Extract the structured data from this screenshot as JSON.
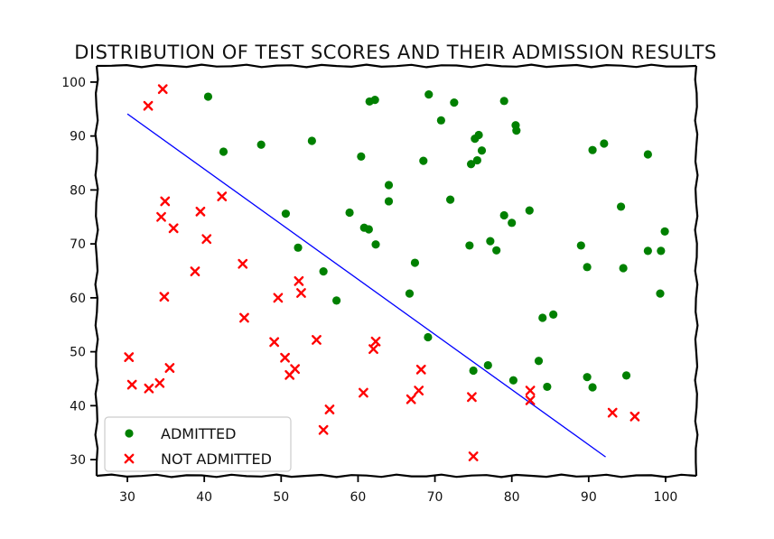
{
  "chart_data": {
    "type": "scatter",
    "title": "DISTRIBUTION OF TEST SCORES AND THEIR ADMISSION RESULTS",
    "xlabel": "",
    "ylabel": "",
    "xlim": [
      26,
      104
    ],
    "ylim": [
      27,
      103
    ],
    "xticks": [
      "30",
      "40",
      "50",
      "60",
      "70",
      "80",
      "90",
      "100"
    ],
    "yticks": [
      "30",
      "40",
      "50",
      "60",
      "70",
      "80",
      "90",
      "100"
    ],
    "grid": false,
    "legend_position": "lower-left",
    "series": [
      {
        "name": "ADMITTED",
        "marker": "circle",
        "color": "#008000",
        "points": [
          [
            40.5,
            97.3
          ],
          [
            61.5,
            96.4
          ],
          [
            62.2,
            96.7
          ],
          [
            69.2,
            97.7
          ],
          [
            72.5,
            96.2
          ],
          [
            79.0,
            96.5
          ],
          [
            70.8,
            92.9
          ],
          [
            80.5,
            92.0
          ],
          [
            80.6,
            91.0
          ],
          [
            75.2,
            89.5
          ],
          [
            75.7,
            90.2
          ],
          [
            54.0,
            89.1
          ],
          [
            47.4,
            88.4
          ],
          [
            42.5,
            87.1
          ],
          [
            76.1,
            87.3
          ],
          [
            92.0,
            88.6
          ],
          [
            90.5,
            87.4
          ],
          [
            97.7,
            86.6
          ],
          [
            60.4,
            86.2
          ],
          [
            68.5,
            85.4
          ],
          [
            75.5,
            85.5
          ],
          [
            74.7,
            84.8
          ],
          [
            64.0,
            80.9
          ],
          [
            64.0,
            77.9
          ],
          [
            72.0,
            78.2
          ],
          [
            94.2,
            76.9
          ],
          [
            82.3,
            76.2
          ],
          [
            79.0,
            75.3
          ],
          [
            58.9,
            75.8
          ],
          [
            50.6,
            75.6
          ],
          [
            60.8,
            73.0
          ],
          [
            61.4,
            72.7
          ],
          [
            80.0,
            73.9
          ],
          [
            99.9,
            72.3
          ],
          [
            62.3,
            69.9
          ],
          [
            52.2,
            69.3
          ],
          [
            74.5,
            69.7
          ],
          [
            77.2,
            70.5
          ],
          [
            78.0,
            68.8
          ],
          [
            89.0,
            69.7
          ],
          [
            97.7,
            68.7
          ],
          [
            99.4,
            68.7
          ],
          [
            67.4,
            66.5
          ],
          [
            89.8,
            65.7
          ],
          [
            94.5,
            65.5
          ],
          [
            55.5,
            64.9
          ],
          [
            66.7,
            60.8
          ],
          [
            57.2,
            59.5
          ],
          [
            99.3,
            60.8
          ],
          [
            85.4,
            56.9
          ],
          [
            84.0,
            56.3
          ],
          [
            69.1,
            52.7
          ],
          [
            76.9,
            47.5
          ],
          [
            75.0,
            46.5
          ],
          [
            83.5,
            48.3
          ],
          [
            80.2,
            44.7
          ],
          [
            84.6,
            43.5
          ],
          [
            89.8,
            45.3
          ],
          [
            90.5,
            43.4
          ],
          [
            94.9,
            45.6
          ]
        ]
      },
      {
        "name": "NOT ADMITTED",
        "marker": "x",
        "color": "#ff0000",
        "points": [
          [
            34.6,
            98.7
          ],
          [
            32.7,
            95.6
          ],
          [
            42.3,
            78.8
          ],
          [
            34.9,
            77.9
          ],
          [
            34.4,
            75.0
          ],
          [
            39.5,
            76.0
          ],
          [
            36.0,
            72.9
          ],
          [
            40.3,
            70.9
          ],
          [
            45.0,
            66.3
          ],
          [
            38.8,
            64.9
          ],
          [
            52.3,
            63.1
          ],
          [
            52.6,
            60.9
          ],
          [
            49.6,
            60.0
          ],
          [
            34.8,
            60.2
          ],
          [
            45.2,
            56.3
          ],
          [
            54.6,
            52.2
          ],
          [
            62.3,
            51.9
          ],
          [
            62.0,
            50.5
          ],
          [
            49.1,
            51.8
          ],
          [
            50.5,
            48.9
          ],
          [
            30.2,
            49.0
          ],
          [
            51.8,
            46.8
          ],
          [
            51.1,
            45.7
          ],
          [
            35.5,
            47.0
          ],
          [
            68.2,
            46.7
          ],
          [
            30.6,
            43.9
          ],
          [
            32.8,
            43.2
          ],
          [
            34.2,
            44.2
          ],
          [
            60.7,
            42.4
          ],
          [
            67.9,
            42.8
          ],
          [
            66.9,
            41.2
          ],
          [
            74.8,
            41.6
          ],
          [
            82.4,
            42.8
          ],
          [
            82.4,
            41.0
          ],
          [
            56.3,
            39.3
          ],
          [
            93.1,
            38.7
          ],
          [
            96.0,
            38.0
          ],
          [
            55.5,
            35.5
          ],
          [
            75.0,
            30.6
          ]
        ]
      }
    ],
    "lines": [
      {
        "x": [
          30.0,
          92.2
        ],
        "y": [
          94.1,
          30.5
        ],
        "color": "#0000ff"
      }
    ]
  }
}
